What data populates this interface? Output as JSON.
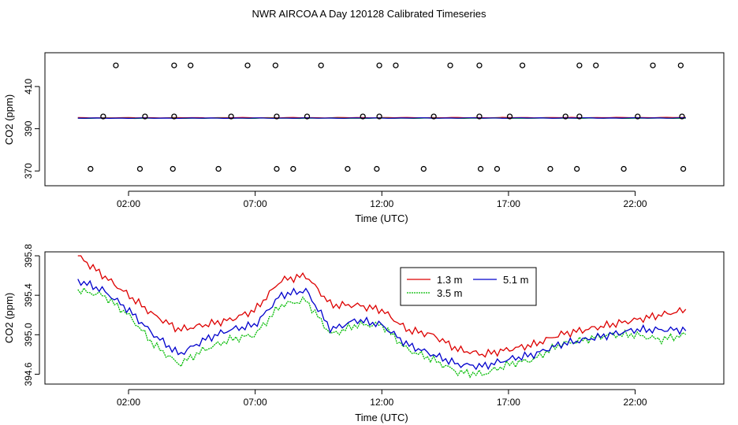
{
  "title": "NWR AIRCOA A  Day 120128  Calibrated Timeseries",
  "colors": {
    "red": "#dd0000",
    "green": "#00bb00",
    "blue": "#0000cc",
    "marker": "#000000"
  },
  "chart_data": [
    {
      "type": "scatter",
      "title": "",
      "xlabel": "Time (UTC)",
      "ylabel": "CO2 (ppm)",
      "xlim": [
        -1.3,
        25.5
      ],
      "ylim": [
        363,
        426
      ],
      "xticks": [
        2,
        7,
        12,
        17,
        22
      ],
      "xtick_labels": [
        "02:00",
        "07:00",
        "12:00",
        "17:00",
        "22:00"
      ],
      "yticks": [
        370,
        390,
        410
      ],
      "ytick_labels": [
        "370",
        "390",
        "410"
      ],
      "calibration_points": {
        "high": {
          "y": 420,
          "x": [
            1.5,
            3.8,
            4.45,
            6.7,
            7.8,
            9.6,
            11.9,
            12.55,
            14.7,
            15.85,
            17.55,
            19.8,
            20.45,
            22.7,
            23.8
          ]
        },
        "mid": {
          "y": 395.8,
          "x": [
            1.0,
            2.65,
            3.8,
            6.05,
            7.85,
            9.05,
            11.25,
            11.9,
            14.05,
            15.85,
            17.05,
            19.25,
            19.8,
            22.1,
            23.85
          ]
        },
        "low": {
          "y": 371,
          "x": [
            0.5,
            2.45,
            3.75,
            5.55,
            7.85,
            8.5,
            10.65,
            11.8,
            13.65,
            15.9,
            16.55,
            18.65,
            19.7,
            21.55,
            23.9
          ]
        }
      },
      "series": [
        {
          "name": "1.3 m",
          "color": "#dd0000",
          "x": [
            0,
            24
          ],
          "values": [
            395.2,
            395.3
          ]
        },
        {
          "name": "3.5 m",
          "color": "#00bb00",
          "x": [
            0,
            24
          ],
          "values": [
            395.0,
            395.0
          ]
        },
        {
          "name": "5.1 m",
          "color": "#0000cc",
          "x": [
            0,
            24
          ],
          "values": [
            395.0,
            395.1
          ]
        }
      ]
    },
    {
      "type": "line",
      "title": "",
      "xlabel": "Time (UTC)",
      "ylabel": "CO2 (ppm)",
      "xlim": [
        -1.3,
        25.5
      ],
      "ylim": [
        394.5,
        395.84
      ],
      "xticks": [
        2,
        7,
        12,
        17,
        22
      ],
      "xtick_labels": [
        "02:00",
        "07:00",
        "12:00",
        "17:00",
        "22:00"
      ],
      "yticks": [
        394.6,
        395.0,
        395.4,
        395.8
      ],
      "ytick_labels": [
        "394.6",
        "395.0",
        "395.4",
        "395.8"
      ],
      "legend": {
        "position": "top-center",
        "entries": [
          "1.3 m",
          "3.5 m",
          "5.1 m"
        ]
      },
      "x": [
        0,
        1,
        2,
        3,
        4,
        5,
        6,
        7,
        8,
        9,
        10,
        11,
        12,
        13,
        14,
        15,
        16,
        17,
        18,
        19,
        20,
        21,
        22,
        23,
        24
      ],
      "series": [
        {
          "name": "1.3 m",
          "color": "#dd0000",
          "values": [
            395.8,
            395.6,
            395.4,
            395.2,
            395.05,
            395.1,
            395.15,
            395.25,
            395.55,
            395.6,
            395.3,
            395.3,
            395.25,
            395.05,
            395.0,
            394.85,
            394.8,
            394.85,
            394.9,
            395.0,
            395.05,
            395.1,
            395.15,
            395.2,
            395.25
          ]
        },
        {
          "name": "3.5 m",
          "color": "#00bb00",
          "values": [
            395.45,
            395.4,
            395.2,
            394.9,
            394.7,
            394.85,
            394.95,
            395.0,
            395.3,
            395.35,
            395.0,
            395.1,
            395.1,
            394.85,
            394.75,
            394.62,
            394.6,
            394.7,
            394.75,
            394.9,
            394.95,
            395.0,
            395.0,
            394.95,
            395.0
          ]
        },
        {
          "name": "5.1 m",
          "color": "#0000cc",
          "values": [
            395.55,
            395.45,
            395.25,
            395.0,
            394.8,
            394.95,
            395.05,
            395.1,
            395.4,
            395.45,
            395.05,
            395.15,
            395.1,
            394.9,
            394.8,
            394.7,
            394.68,
            394.75,
            394.8,
            394.9,
            394.95,
            395.0,
            395.05,
            395.05,
            395.05
          ]
        }
      ]
    }
  ]
}
